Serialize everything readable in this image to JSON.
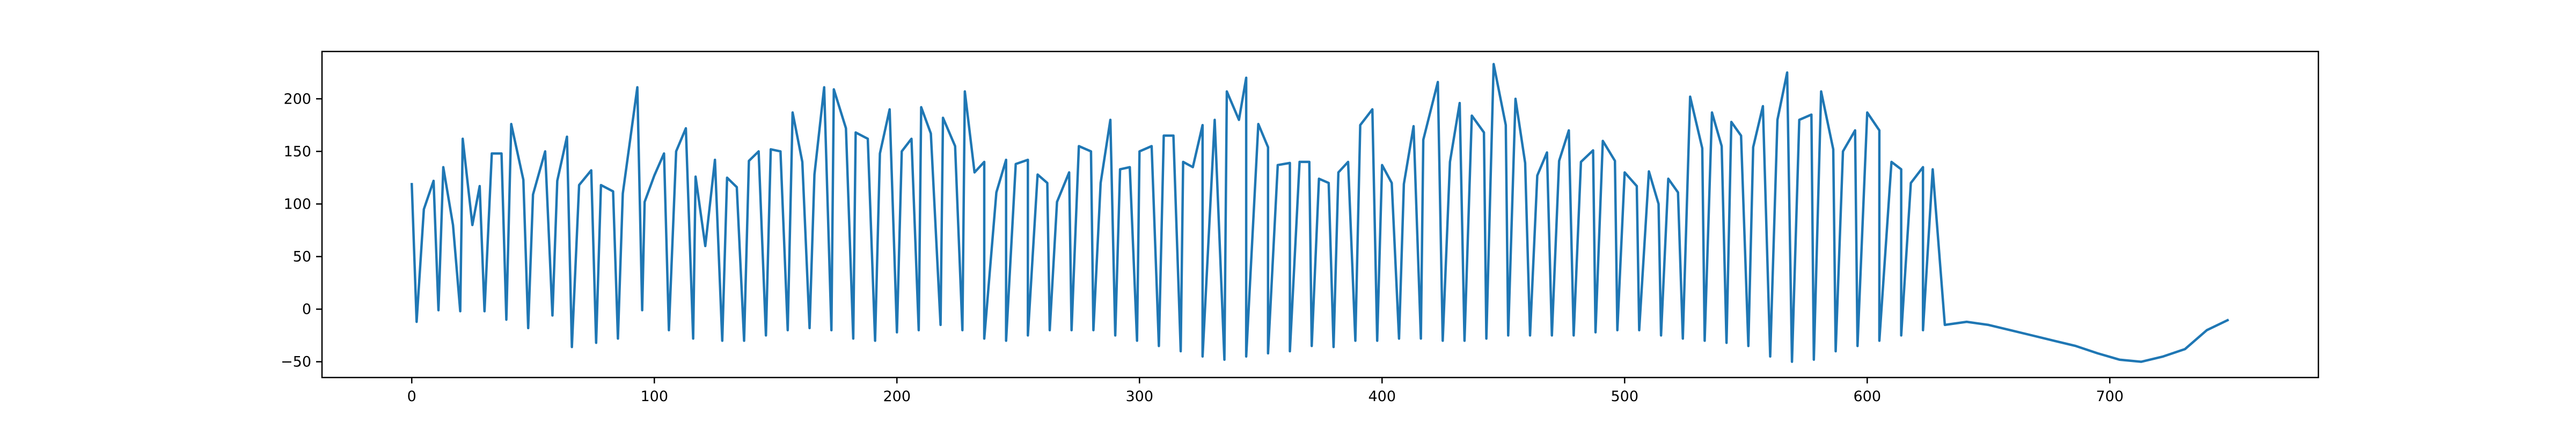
{
  "chart_data": {
    "type": "line",
    "title": "",
    "xlabel": "",
    "ylabel": "",
    "xlim": [
      -37,
      786
    ],
    "ylim": [
      -65,
      245
    ],
    "x_ticks": [
      0,
      100,
      200,
      300,
      400,
      500,
      600,
      700
    ],
    "y_ticks": [
      -50,
      0,
      50,
      100,
      150,
      200
    ],
    "x_tick_labels": [
      "0",
      "100",
      "200",
      "300",
      "400",
      "500",
      "600",
      "700"
    ],
    "y_tick_labels": [
      "−50",
      "0",
      "50",
      "100",
      "150",
      "200"
    ],
    "grid": false,
    "legend": "none",
    "series": [
      {
        "color": "#1f77b4",
        "x_start": 0,
        "x_step": 1,
        "description": "oscillating signal, 750 samples, values roughly -50 to 230",
        "peaks": [
          [
            0,
            120
          ],
          [
            5,
            95
          ],
          [
            9,
            122
          ],
          [
            13,
            135
          ],
          [
            17,
            80
          ],
          [
            21,
            162
          ],
          [
            25,
            80
          ],
          [
            28,
            117
          ],
          [
            33,
            148
          ],
          [
            37,
            148
          ],
          [
            41,
            176
          ],
          [
            46,
            123
          ],
          [
            50,
            109
          ],
          [
            55,
            150
          ],
          [
            60,
            122
          ],
          [
            64,
            164
          ],
          [
            69,
            118
          ],
          [
            74,
            132
          ],
          [
            78,
            118
          ],
          [
            83,
            112
          ],
          [
            87,
            110
          ],
          [
            93,
            211
          ],
          [
            96,
            102
          ],
          [
            100,
            127
          ],
          [
            104,
            148
          ],
          [
            109,
            150
          ],
          [
            113,
            172
          ],
          [
            117,
            126
          ],
          [
            121,
            60
          ],
          [
            125,
            142
          ],
          [
            130,
            125
          ],
          [
            134,
            116
          ],
          [
            139,
            141
          ],
          [
            143,
            150
          ],
          [
            148,
            152
          ],
          [
            152,
            150
          ],
          [
            157,
            187
          ],
          [
            161,
            140
          ],
          [
            166,
            128
          ],
          [
            170,
            211
          ],
          [
            174,
            209
          ],
          [
            179,
            172
          ],
          [
            183,
            168
          ],
          [
            188,
            162
          ],
          [
            193,
            148
          ],
          [
            197,
            190
          ],
          [
            202,
            150
          ],
          [
            206,
            162
          ],
          [
            210,
            192
          ],
          [
            214,
            167
          ],
          [
            219,
            182
          ],
          [
            224,
            155
          ],
          [
            228,
            207
          ],
          [
            232,
            130
          ],
          [
            236,
            140
          ],
          [
            241,
            111
          ],
          [
            245,
            142
          ],
          [
            249,
            138
          ],
          [
            254,
            142
          ],
          [
            258,
            128
          ],
          [
            262,
            120
          ],
          [
            266,
            102
          ],
          [
            271,
            130
          ],
          [
            275,
            155
          ],
          [
            280,
            150
          ],
          [
            284,
            120
          ],
          [
            288,
            180
          ],
          [
            292,
            133
          ],
          [
            296,
            135
          ],
          [
            300,
            150
          ],
          [
            305,
            155
          ],
          [
            310,
            165
          ],
          [
            314,
            165
          ],
          [
            318,
            140
          ],
          [
            322,
            135
          ],
          [
            326,
            175
          ],
          [
            331,
            180
          ],
          [
            336,
            207
          ],
          [
            341,
            180
          ],
          [
            344,
            220
          ],
          [
            349,
            176
          ],
          [
            353,
            154
          ],
          [
            357,
            137
          ],
          [
            362,
            139
          ],
          [
            366,
            140
          ],
          [
            370,
            140
          ],
          [
            374,
            124
          ],
          [
            378,
            120
          ],
          [
            382,
            130
          ],
          [
            386,
            140
          ],
          [
            391,
            175
          ],
          [
            396,
            190
          ],
          [
            400,
            137
          ],
          [
            404,
            120
          ],
          [
            409,
            119
          ],
          [
            413,
            174
          ],
          [
            417,
            161
          ],
          [
            423,
            216
          ],
          [
            428,
            140
          ],
          [
            432,
            196
          ],
          [
            437,
            184
          ],
          [
            442,
            168
          ],
          [
            446,
            233
          ],
          [
            451,
            175
          ],
          [
            455,
            200
          ],
          [
            459,
            139
          ],
          [
            464,
            127
          ],
          [
            468,
            149
          ],
          [
            473,
            141
          ],
          [
            477,
            170
          ],
          [
            482,
            140
          ],
          [
            487,
            151
          ],
          [
            491,
            160
          ],
          [
            496,
            141
          ],
          [
            500,
            130
          ],
          [
            505,
            117
          ],
          [
            510,
            131
          ],
          [
            514,
            100
          ],
          [
            518,
            124
          ],
          [
            522,
            111
          ],
          [
            527,
            202
          ],
          [
            532,
            153
          ],
          [
            536,
            187
          ],
          [
            540,
            155
          ],
          [
            544,
            178
          ],
          [
            548,
            165
          ],
          [
            553,
            154
          ],
          [
            557,
            193
          ],
          [
            563,
            180
          ],
          [
            567,
            225
          ],
          [
            572,
            180
          ],
          [
            577,
            185
          ],
          [
            581,
            207
          ],
          [
            586,
            152
          ],
          [
            590,
            150
          ],
          [
            595,
            170
          ],
          [
            600,
            187
          ],
          [
            605,
            170
          ],
          [
            610,
            140
          ],
          [
            614,
            133
          ],
          [
            618,
            120
          ],
          [
            623,
            135
          ],
          [
            627,
            133
          ]
        ],
        "troughs": [
          [
            2,
            -12
          ],
          [
            11,
            -1
          ],
          [
            20,
            -2
          ],
          [
            30,
            -2
          ],
          [
            39,
            -10
          ],
          [
            48,
            -18
          ],
          [
            58,
            -6
          ],
          [
            66,
            -36
          ],
          [
            76,
            -32
          ],
          [
            85,
            -28
          ],
          [
            95,
            -1
          ],
          [
            106,
            -20
          ],
          [
            116,
            -28
          ],
          [
            128,
            -30
          ],
          [
            137,
            -30
          ],
          [
            146,
            -25
          ],
          [
            155,
            -20
          ],
          [
            164,
            -18
          ],
          [
            173,
            -20
          ],
          [
            182,
            -28
          ],
          [
            191,
            -30
          ],
          [
            200,
            -22
          ],
          [
            209,
            -20
          ],
          [
            218,
            -15
          ],
          [
            227,
            -20
          ],
          [
            236,
            -28
          ],
          [
            245,
            -30
          ],
          [
            254,
            -25
          ],
          [
            263,
            -20
          ],
          [
            272,
            -20
          ],
          [
            281,
            -20
          ],
          [
            290,
            -25
          ],
          [
            299,
            -30
          ],
          [
            308,
            -35
          ],
          [
            317,
            -40
          ],
          [
            326,
            -45
          ],
          [
            335,
            -48
          ],
          [
            344,
            -45
          ],
          [
            353,
            -42
          ],
          [
            362,
            -40
          ],
          [
            371,
            -35
          ],
          [
            380,
            -36
          ],
          [
            389,
            -30
          ],
          [
            398,
            -30
          ],
          [
            407,
            -28
          ],
          [
            416,
            -28
          ],
          [
            425,
            -30
          ],
          [
            434,
            -30
          ],
          [
            443,
            -28
          ],
          [
            452,
            -25
          ],
          [
            461,
            -25
          ],
          [
            470,
            -25
          ],
          [
            479,
            -25
          ],
          [
            488,
            -22
          ],
          [
            497,
            -20
          ],
          [
            506,
            -20
          ],
          [
            515,
            -25
          ],
          [
            524,
            -28
          ],
          [
            533,
            -30
          ],
          [
            542,
            -32
          ],
          [
            551,
            -35
          ],
          [
            560,
            -45
          ],
          [
            569,
            -50
          ],
          [
            578,
            -48
          ],
          [
            587,
            -40
          ],
          [
            596,
            -35
          ],
          [
            605,
            -30
          ],
          [
            614,
            -25
          ],
          [
            623,
            -20
          ],
          [
            632,
            -15
          ],
          [
            641,
            -12
          ],
          [
            650,
            -15
          ],
          [
            659,
            -20
          ],
          [
            668,
            -25
          ],
          [
            677,
            -30
          ],
          [
            686,
            -35
          ],
          [
            695,
            -42
          ],
          [
            704,
            -48
          ],
          [
            713,
            -50
          ],
          [
            722,
            -45
          ],
          [
            731,
            -38
          ],
          [
            740,
            -20
          ],
          [
            749,
            -10
          ]
        ]
      }
    ]
  }
}
